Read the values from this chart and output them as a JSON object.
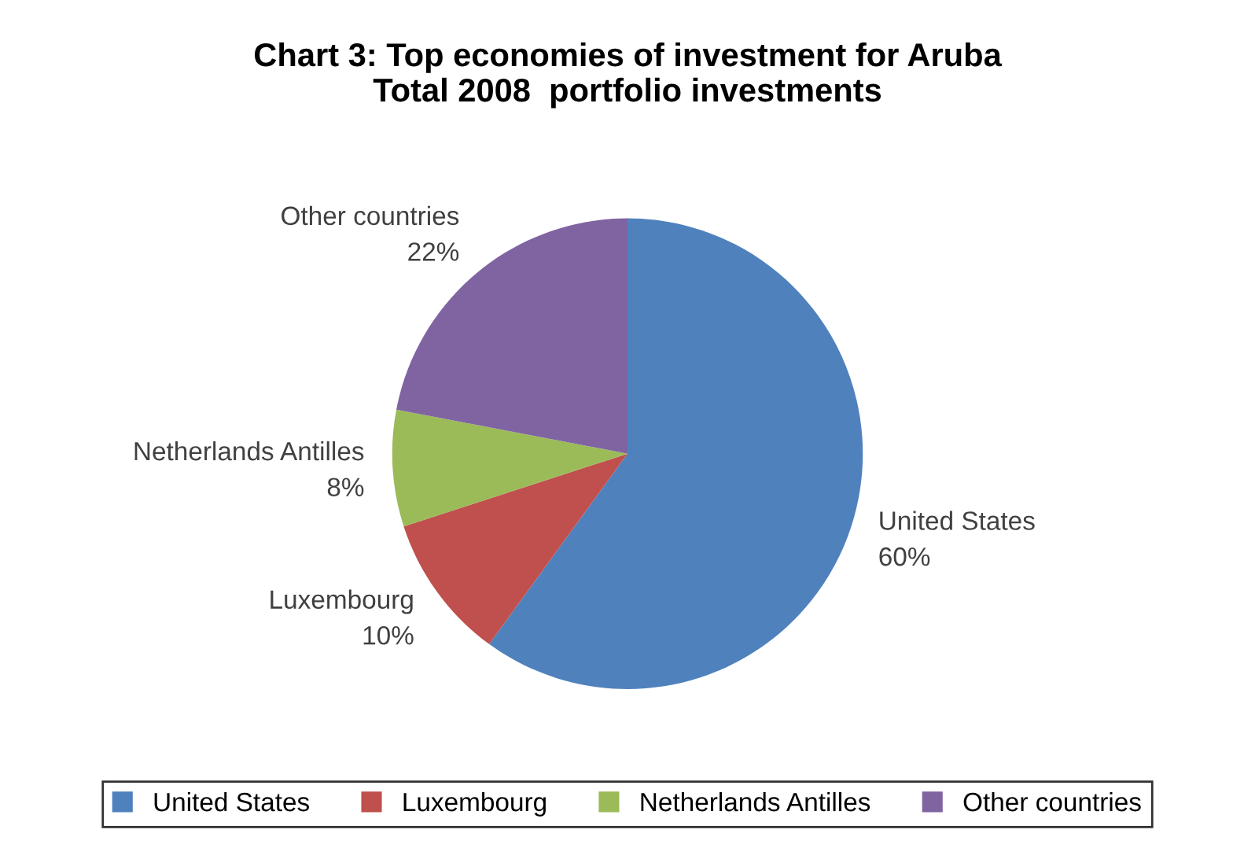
{
  "chart_data": {
    "type": "pie",
    "title": "Chart 3: Top economies of investment for Aruba\nTotal 2008  portfolio investments",
    "categories": [
      "United States",
      "Luxembourg",
      "Netherlands Antilles",
      "Other countries"
    ],
    "values": [
      60,
      10,
      8,
      22
    ],
    "colors": [
      "#4f81bd",
      "#c0504d",
      "#9bbb59",
      "#8064a2"
    ],
    "value_labels": [
      "60%",
      "10%",
      "8%",
      "22%"
    ],
    "legend": "bottom"
  }
}
